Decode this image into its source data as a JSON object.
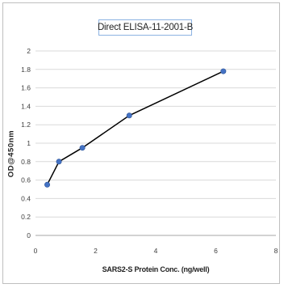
{
  "chart_data": {
    "type": "scatter",
    "title": "Direct ELISA-11-2001-B",
    "xlabel": "SARS2-S Protein Conc. (ng/well)",
    "ylabel": "OD@450nm",
    "xlim": [
      0,
      8
    ],
    "ylim": [
      0,
      2
    ],
    "xticks": [
      0,
      2,
      4,
      6,
      8
    ],
    "yticks": [
      0,
      0.2,
      0.4,
      0.6,
      0.8,
      1,
      1.2,
      1.4,
      1.6,
      1.8,
      2
    ],
    "xtick_labels": [
      "0",
      "2",
      "4",
      "6",
      "8"
    ],
    "ytick_labels": [
      "0",
      "0.2",
      "0.4",
      "0.6",
      "0.8",
      "1",
      "1.2",
      "1.4",
      "1.6",
      "1.8",
      "2"
    ],
    "grid": "horizontal",
    "legend": "none",
    "series": [
      {
        "x": [
          0.39,
          0.78,
          1.56,
          3.12,
          6.25
        ],
        "y": [
          0.55,
          0.8,
          0.95,
          1.3,
          1.78
        ],
        "marker_color": "#4472c4",
        "line_color": "#000000"
      }
    ]
  }
}
